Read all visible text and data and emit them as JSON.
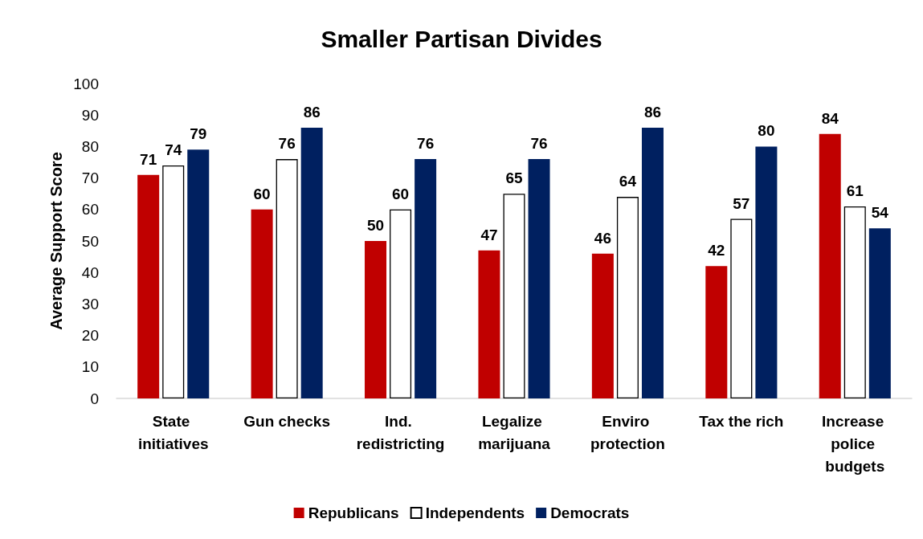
{
  "chart_data": {
    "type": "bar",
    "title": "Smaller Partisan Divides",
    "ylabel": "Average Support Score",
    "categories": [
      "State initiatives",
      "Gun checks",
      "Ind. redistricting",
      "Legalize marijuana",
      "Enviro protection",
      "Tax the rich",
      "Increase police budgets"
    ],
    "series": [
      {
        "name": "Republicans",
        "color": "#c00000",
        "values": [
          71,
          60,
          50,
          47,
          46,
          42,
          84
        ]
      },
      {
        "name": "Independents",
        "color": "#ffffff",
        "values": [
          74,
          76,
          60,
          65,
          64,
          57,
          61
        ]
      },
      {
        "name": "Democrats",
        "color": "#002060",
        "values": [
          79,
          86,
          76,
          76,
          86,
          80,
          54
        ]
      }
    ],
    "ylim": [
      0,
      100
    ],
    "yticks": [
      0,
      10,
      20,
      30,
      40,
      50,
      60,
      70,
      80,
      90,
      100
    ],
    "grid": false,
    "data_labels": true,
    "legend": "bottom"
  }
}
